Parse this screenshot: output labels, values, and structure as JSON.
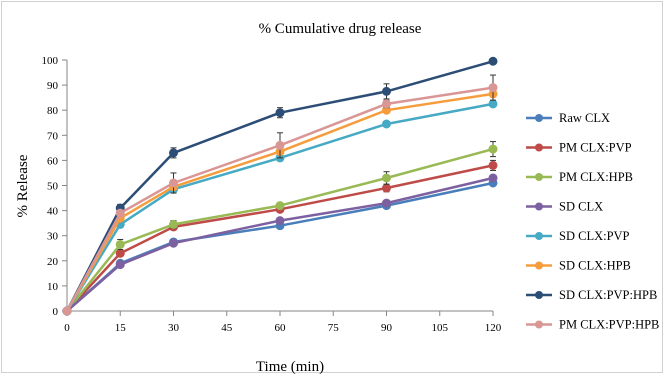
{
  "chart_data": {
    "type": "line",
    "title": "% Cumulative drug release",
    "xlabel": "Time (min)",
    "ylabel": "% Release",
    "xlim": [
      0,
      120
    ],
    "ylim": [
      0,
      100
    ],
    "xticks": [
      "0",
      "15",
      "30",
      "45",
      "60",
      "75",
      "90",
      "105",
      "120"
    ],
    "yticks": [
      "0",
      "10",
      "20",
      "30",
      "40",
      "50",
      "60",
      "70",
      "80",
      "90",
      "100"
    ],
    "grid": false,
    "legend_position": "right",
    "x": [
      0,
      15,
      30,
      60,
      90,
      120
    ],
    "series": [
      {
        "name": "Raw CLX",
        "color": "#4a7ebb",
        "values": [
          0,
          19,
          27.5,
          34,
          42,
          51
        ],
        "errors": [
          0,
          1,
          1,
          1,
          1,
          1
        ]
      },
      {
        "name": "PM CLX:PVP",
        "color": "#be4b48",
        "values": [
          0,
          23,
          33.5,
          40.5,
          49,
          58
        ],
        "errors": [
          0,
          1,
          1,
          1,
          1.5,
          2
        ]
      },
      {
        "name": "PM CLX:HPB",
        "color": "#98b954",
        "values": [
          0,
          26.5,
          34.5,
          42,
          53,
          64.5
        ],
        "errors": [
          0,
          2,
          1.5,
          1,
          2.5,
          3
        ]
      },
      {
        "name": "SD CLX",
        "color": "#7d60a0",
        "values": [
          0,
          18.5,
          27,
          36,
          43,
          53
        ],
        "errors": [
          0,
          1,
          1,
          1,
          1,
          1
        ]
      },
      {
        "name": "SD CLX:PVP",
        "color": "#46aac5",
        "values": [
          0,
          34.5,
          48.5,
          61,
          74.5,
          82.5
        ],
        "errors": [
          0,
          1,
          1,
          1,
          1,
          1
        ]
      },
      {
        "name": "SD CLX:HPB",
        "color": "#f59d3d",
        "values": [
          0,
          37,
          49.5,
          63.5,
          80,
          86.5
        ],
        "errors": [
          0,
          1,
          1,
          1,
          1,
          1
        ]
      },
      {
        "name": "SD CLX:PVP:HPB",
        "color": "#2c4d75",
        "values": [
          0,
          41,
          63,
          79,
          87.5,
          99.5
        ],
        "errors": [
          0,
          1.5,
          2,
          2,
          3,
          1
        ]
      },
      {
        "name": "PM CLX:PVP:HPB",
        "color": "#d99694",
        "values": [
          0,
          39,
          51,
          66,
          82.5,
          89
        ],
        "errors": [
          0,
          1,
          4,
          5,
          1.5,
          5
        ]
      }
    ]
  }
}
